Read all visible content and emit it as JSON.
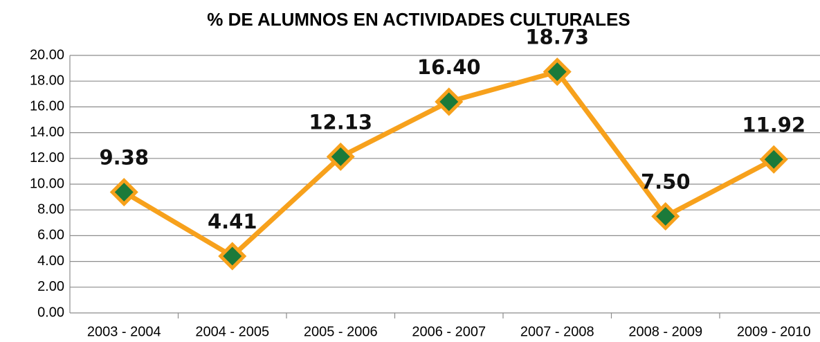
{
  "chart_data": {
    "type": "line",
    "title": "% DE ALUMNOS EN ACTIVIDADES CULTURALES",
    "categories": [
      "2003 - 2004",
      "2004 - 2005",
      "2005 - 2006",
      "2006 - 2007",
      "2007 - 2008",
      "2008 - 2009",
      "2009 - 2010"
    ],
    "series": [
      {
        "name": null,
        "color": "#f7a11c",
        "marker_color": "#1b7a3a",
        "values": [
          9.38,
          4.41,
          12.13,
          16.4,
          18.73,
          7.5,
          11.92
        ],
        "value_labels": [
          "9.38",
          "4.41",
          "12.13",
          "16.40",
          "18.73",
          "7.50",
          "11.92"
        ]
      }
    ],
    "ylim": [
      0,
      20
    ],
    "yticks": [
      {
        "value": 0,
        "label": "0.00"
      },
      {
        "value": 2,
        "label": "2.00"
      },
      {
        "value": 4,
        "label": "4.00"
      },
      {
        "value": 6,
        "label": "6.00"
      },
      {
        "value": 8,
        "label": "8.00"
      },
      {
        "value": 10,
        "label": "10.00"
      },
      {
        "value": 12,
        "label": "12.00"
      },
      {
        "value": 14,
        "label": "14.00"
      },
      {
        "value": 16,
        "label": "16.00"
      },
      {
        "value": 18,
        "label": "18.00"
      },
      {
        "value": 20,
        "label": "20.00"
      }
    ],
    "grid": true
  }
}
